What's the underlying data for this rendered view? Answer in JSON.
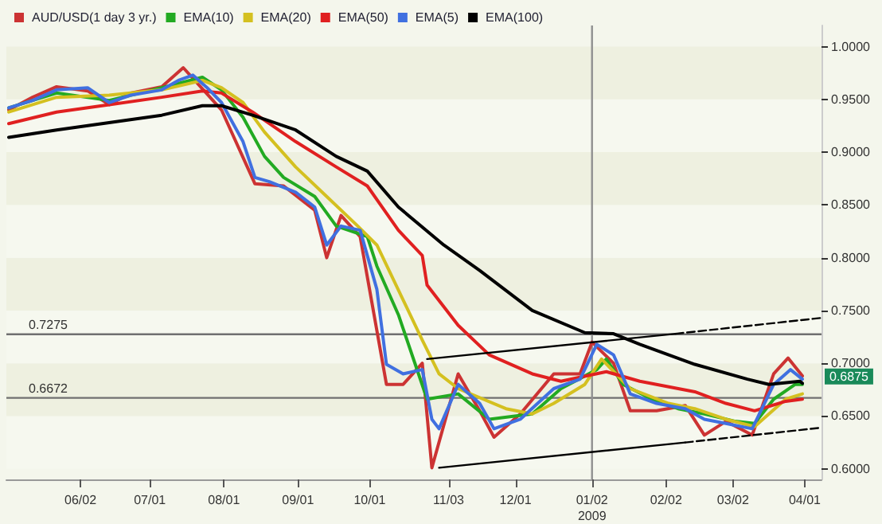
{
  "chart_data": {
    "type": "line",
    "legend": "top left",
    "marker": "none",
    "xlim": [
      "2008-05-02",
      "2009-04-08"
    ],
    "xticks": [
      {
        "value": "2008-06-02",
        "label": "06/02"
      },
      {
        "value": "2008-07-01",
        "label": "07/01"
      },
      {
        "value": "2008-08-01",
        "label": "08/01"
      },
      {
        "value": "2008-09-01",
        "label": "09/01"
      },
      {
        "value": "2008-10-01",
        "label": "10/01"
      },
      {
        "value": "2008-11-03",
        "label": "11/03"
      },
      {
        "value": "2008-12-01",
        "label": "12/01"
      },
      {
        "value": "2009-01-02",
        "label": "01/02\n2009"
      },
      {
        "value": "2009-02-02",
        "label": "02/02"
      },
      {
        "value": "2009-03-02",
        "label": "03/02"
      },
      {
        "value": "2009-04-01",
        "label": "04/01"
      }
    ],
    "ylim": [
      0.59,
      1.02
    ],
    "yticks": [
      {
        "value": 0.6,
        "label": "0.6000"
      },
      {
        "value": 0.65,
        "label": "0.6500"
      },
      {
        "value": 0.7,
        "label": "0.7000"
      },
      {
        "value": 0.75,
        "label": "0.7500"
      },
      {
        "value": 0.8,
        "label": "0.8000"
      },
      {
        "value": 0.85,
        "label": "0.8500"
      },
      {
        "value": 0.9,
        "label": "0.9000"
      },
      {
        "value": 0.95,
        "label": "0.9500"
      },
      {
        "value": 1.0,
        "label": "1.0000"
      }
    ],
    "ref_lines": [
      {
        "axis": "y",
        "value": 0.7275,
        "label": "0.7275",
        "color": "#707070"
      },
      {
        "axis": "y",
        "value": 0.6672,
        "label": "0.6672",
        "color": "#707070"
      },
      {
        "axis": "x",
        "value": "2009-01-02",
        "color": "#909090"
      }
    ],
    "annotations": [
      {
        "text": "0.6875",
        "y": 0.6875
      }
    ],
    "series": [
      {
        "name": "AUD/USD(1 day 3 yr.)",
        "color": "#cc3333",
        "x": [
          "2008-05-03",
          "2008-05-13",
          "2008-05-23",
          "2008-06-05",
          "2008-06-14",
          "2008-06-23",
          "2008-07-06",
          "2008-07-15",
          "2008-07-25",
          "2008-07-31",
          "2008-08-14",
          "2008-08-26",
          "2008-09-08",
          "2008-09-13",
          "2008-09-19",
          "2008-09-27",
          "2008-10-08",
          "2008-10-15",
          "2008-10-23",
          "2008-10-27",
          "2008-11-07",
          "2008-11-16",
          "2008-11-22",
          "2008-12-03",
          "2008-12-17",
          "2008-12-28",
          "2009-01-02",
          "2009-01-11",
          "2009-01-18",
          "2009-01-29",
          "2009-02-10",
          "2009-02-18",
          "2009-02-27",
          "2009-03-10",
          "2009-03-19",
          "2009-03-25",
          "2009-03-31"
        ],
        "values": [
          0.94,
          0.952,
          0.962,
          0.958,
          0.945,
          0.956,
          0.962,
          0.98,
          0.955,
          0.94,
          0.87,
          0.868,
          0.845,
          0.8,
          0.84,
          0.82,
          0.68,
          0.68,
          0.7,
          0.601,
          0.69,
          0.655,
          0.63,
          0.652,
          0.69,
          0.69,
          0.72,
          0.7,
          0.655,
          0.655,
          0.66,
          0.632,
          0.645,
          0.632,
          0.69,
          0.705,
          0.688
        ]
      },
      {
        "name": "EMA(10)",
        "color": "#22aa22",
        "x": [
          "2008-05-03",
          "2008-05-23",
          "2008-06-14",
          "2008-07-06",
          "2008-07-23",
          "2008-07-31",
          "2008-08-09",
          "2008-08-18",
          "2008-08-26",
          "2008-09-08",
          "2008-09-17",
          "2008-09-30",
          "2008-10-04",
          "2008-10-13",
          "2008-10-25",
          "2008-11-07",
          "2008-11-20",
          "2008-12-08",
          "2008-12-20",
          "2009-01-04",
          "2009-01-08",
          "2009-01-15",
          "2009-01-27",
          "2009-02-07",
          "2009-02-18",
          "2009-03-03",
          "2009-03-11",
          "2009-03-19",
          "2009-03-28",
          "2009-03-31"
        ],
        "values": [
          0.942,
          0.956,
          0.949,
          0.961,
          0.971,
          0.959,
          0.933,
          0.896,
          0.876,
          0.858,
          0.83,
          0.82,
          0.792,
          0.746,
          0.666,
          0.671,
          0.647,
          0.652,
          0.676,
          0.694,
          0.704,
          0.68,
          0.666,
          0.657,
          0.652,
          0.645,
          0.643,
          0.666,
          0.68,
          0.68
        ]
      },
      {
        "name": "EMA(20)",
        "color": "#d4c020",
        "x": [
          "2008-05-03",
          "2008-05-23",
          "2008-06-14",
          "2008-07-06",
          "2008-07-23",
          "2008-07-31",
          "2008-08-09",
          "2008-08-18",
          "2008-08-31",
          "2008-09-13",
          "2008-09-26",
          "2008-10-04",
          "2008-10-23",
          "2008-10-30",
          "2008-11-07",
          "2008-11-27",
          "2008-12-08",
          "2008-12-17",
          "2008-12-30",
          "2009-01-06",
          "2009-01-18",
          "2009-02-03",
          "2009-02-14",
          "2009-02-27",
          "2009-03-11",
          "2009-03-24",
          "2009-03-31"
        ],
        "values": [
          0.938,
          0.952,
          0.954,
          0.959,
          0.968,
          0.961,
          0.947,
          0.919,
          0.886,
          0.858,
          0.83,
          0.812,
          0.722,
          0.69,
          0.676,
          0.657,
          0.652,
          0.662,
          0.68,
          0.704,
          0.676,
          0.662,
          0.657,
          0.647,
          0.64,
          0.666,
          0.671
        ]
      },
      {
        "name": "EMA(50)",
        "color": "#e02020",
        "x": [
          "2008-05-03",
          "2008-05-23",
          "2008-06-14",
          "2008-07-06",
          "2008-07-23",
          "2008-07-31",
          "2008-08-13",
          "2008-08-31",
          "2008-09-17",
          "2008-09-30",
          "2008-10-13",
          "2008-10-23",
          "2008-10-25",
          "2008-11-07",
          "2008-11-20",
          "2008-12-08",
          "2008-12-20",
          "2009-01-08",
          "2009-01-22",
          "2009-02-14",
          "2009-02-27",
          "2009-03-11",
          "2009-03-24",
          "2009-03-31"
        ],
        "values": [
          0.927,
          0.938,
          0.945,
          0.952,
          0.958,
          0.956,
          0.938,
          0.91,
          0.886,
          0.868,
          0.826,
          0.802,
          0.774,
          0.736,
          0.708,
          0.69,
          0.683,
          0.692,
          0.683,
          0.673,
          0.662,
          0.655,
          0.664,
          0.666
        ]
      },
      {
        "name": "EMA(5)",
        "color": "#4070e0",
        "x": [
          "2008-05-03",
          "2008-05-13",
          "2008-05-23",
          "2008-06-05",
          "2008-06-14",
          "2008-06-23",
          "2008-07-06",
          "2008-07-13",
          "2008-07-19",
          "2008-07-25",
          "2008-07-31",
          "2008-08-09",
          "2008-08-14",
          "2008-08-20",
          "2008-08-31",
          "2008-09-08",
          "2008-09-13",
          "2008-09-19",
          "2008-09-27",
          "2008-10-04",
          "2008-10-08",
          "2008-10-15",
          "2008-10-23",
          "2008-10-27",
          "2008-10-30",
          "2008-11-07",
          "2008-11-16",
          "2008-11-22",
          "2008-12-03",
          "2008-12-17",
          "2008-12-28",
          "2009-01-04",
          "2009-01-11",
          "2009-01-18",
          "2009-01-29",
          "2009-02-10",
          "2009-02-18",
          "2009-02-27",
          "2009-03-10",
          "2009-03-19",
          "2009-03-26",
          "2009-03-31"
        ],
        "values": [
          0.942,
          0.949,
          0.959,
          0.961,
          0.947,
          0.954,
          0.959,
          0.968,
          0.973,
          0.961,
          0.947,
          0.91,
          0.876,
          0.872,
          0.862,
          0.848,
          0.812,
          0.83,
          0.826,
          0.77,
          0.699,
          0.69,
          0.694,
          0.647,
          0.638,
          0.68,
          0.662,
          0.638,
          0.647,
          0.676,
          0.685,
          0.718,
          0.708,
          0.671,
          0.662,
          0.657,
          0.647,
          0.643,
          0.638,
          0.68,
          0.694,
          0.685
        ]
      },
      {
        "name": "EMA(100)",
        "color": "#000000",
        "x": [
          "2008-05-03",
          "2008-05-23",
          "2008-06-14",
          "2008-07-06",
          "2008-07-23",
          "2008-07-31",
          "2008-08-13",
          "2008-08-31",
          "2008-09-17",
          "2008-09-30",
          "2008-10-13",
          "2008-11-01",
          "2008-11-16",
          "2008-12-08",
          "2008-12-30",
          "2009-01-11",
          "2009-01-22",
          "2009-02-14",
          "2009-03-08",
          "2009-03-17",
          "2009-03-30",
          "2009-03-31"
        ],
        "values": [
          0.914,
          0.921,
          0.928,
          0.935,
          0.944,
          0.944,
          0.935,
          0.921,
          0.896,
          0.882,
          0.848,
          0.812,
          0.788,
          0.75,
          0.729,
          0.728,
          0.718,
          0.699,
          0.685,
          0.68,
          0.683,
          0.681
        ]
      },
      {
        "color": "#000000",
        "x": [
          "2008-10-25",
          "2009-02-06"
        ],
        "values": [
          0.704,
          0.728
        ]
      },
      {
        "color": "#000000",
        "line_style": "dashed",
        "x": [
          "2009-02-06",
          "2009-04-08"
        ],
        "values": [
          0.728,
          0.743
        ]
      },
      {
        "color": "#000000",
        "x": [
          "2008-10-30",
          "2009-02-10"
        ],
        "values": [
          0.601,
          0.625
        ]
      },
      {
        "color": "#000000",
        "line_style": "dashed",
        "x": [
          "2009-02-10",
          "2009-04-08"
        ],
        "values": [
          0.625,
          0.639
        ]
      }
    ]
  }
}
